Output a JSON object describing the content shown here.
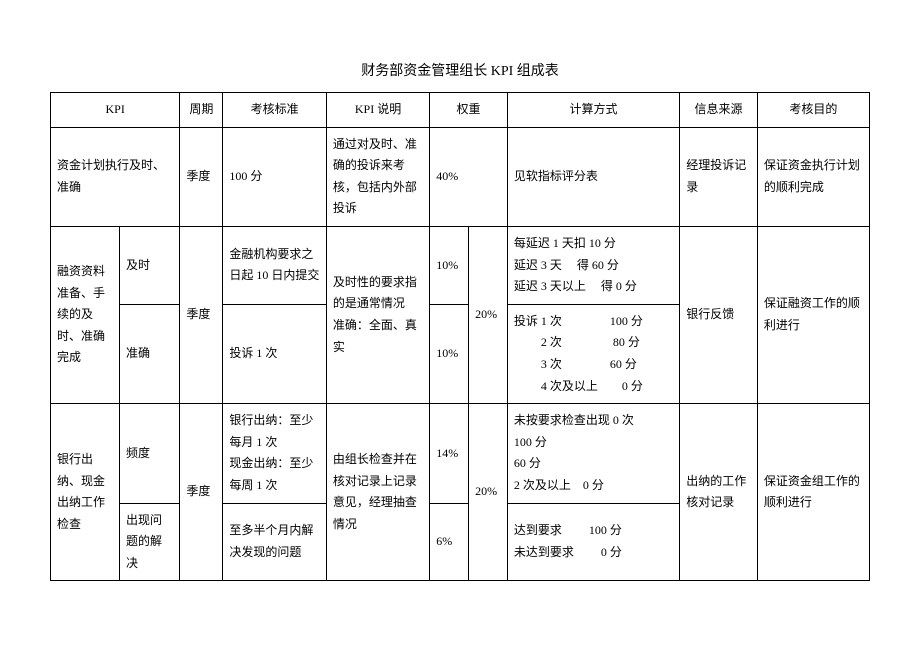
{
  "title": "财务部资金管理组长 KPI 组成表",
  "headers": {
    "kpi": "KPI",
    "period": "周期",
    "standard": "考核标准",
    "desc": "KPI 说明",
    "weight": "权重",
    "calc": "计算方式",
    "source": "信息来源",
    "goal": "考核目的"
  },
  "rows": {
    "r1": {
      "kpi": "资金计划执行及时、准确",
      "period": "季度",
      "standard": "100 分",
      "desc": "通过对及时、准确的投诉来考核，包括内外部投诉",
      "wt": "40%",
      "calc": "见软指标评分表",
      "source": "经理投诉记录",
      "goal": "保证资金执行计划的顺利完成"
    },
    "r2": {
      "kpi": "融资资料准备、手续的及时、准确完成",
      "sub1": "及时",
      "sub2": "准确",
      "period": "季度",
      "std1": "金融机构要求之日起 10 日内提交",
      "std2": "投诉 1 次",
      "desc": "及时性的要求指的是通常情况\n准确：全面、真实",
      "wt1": "10%",
      "wt2": "10%",
      "wtTotal": "20%",
      "calc1": "每延迟 1 天扣 10 分\n延迟 3 天　 得 60 分\n延迟 3 天以上　 得 0 分",
      "calc2": "投诉 1 次　　　　100 分\n　　 2 次　　　　 80 分\n　　 3  次　　　　60 分\n　　 4 次及以上　　0 分",
      "source": "银行反馈",
      "goal": "保证融资工作的顺利进行"
    },
    "r3": {
      "kpi": "银行出纳、现金出纳工作检查",
      "sub1": "频度",
      "sub2": "出现问题的解决",
      "period": "季度",
      "std1": "银行出纳：至少每月 1 次\n现金出纳：至少每周 1 次",
      "std2": "至多半个月内解决发现的问题",
      "desc": "由组长检查并在核对记录上记录意见，经理抽查情况",
      "wt1": "14%",
      "wt2": "6%",
      "wtTotal": "20%",
      "calc1": "未按要求检查出现 0 次\n100 分\n60 分\n2 次及以上　0 分",
      "calc2": "达到要求　　 100 分\n未达到要求　　 0 分",
      "source": "出纳的工作核对记录",
      "goal": "保证资金组工作的顺利进行"
    }
  }
}
